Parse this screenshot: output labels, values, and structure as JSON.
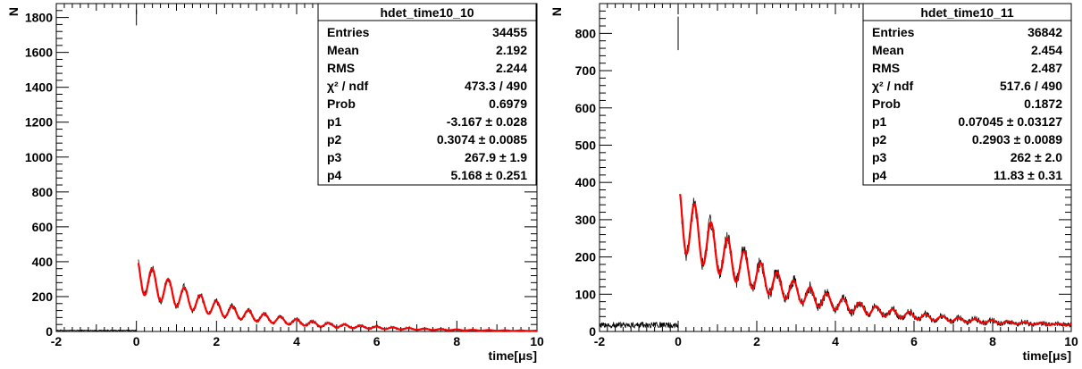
{
  "chart_data": [
    {
      "type": "line",
      "title": "hdet_time10_10",
      "xlabel": "time[μs]",
      "ylabel": "N",
      "xlim": [
        -2,
        10
      ],
      "ylim": [
        0,
        1880
      ],
      "x_ticks": [
        "-2",
        "0",
        "2",
        "4",
        "6",
        "8",
        "10"
      ],
      "y_ticks": [
        "0",
        "200",
        "400",
        "600",
        "800",
        "1000",
        "1200",
        "1400",
        "1600",
        "1800"
      ],
      "stats": {
        "title": "hdet_time10_10",
        "rows": [
          {
            "label": "Entries",
            "value": "34455"
          },
          {
            "label": "Mean",
            "value": "2.192"
          },
          {
            "label": "RMS",
            "value": "2.244"
          },
          {
            "label": "χ² / ndf",
            "value": "473.3 / 490"
          },
          {
            "label": "Prob",
            "value": "0.6979"
          },
          {
            "label": "p1",
            "value": "-3.167 ± 0.028"
          },
          {
            "label": "p2",
            "value": "0.3074 ± 0.0085"
          },
          {
            "label": "p3",
            "value": "267.9 ± 1.9"
          },
          {
            "label": "p4",
            "value": "5.168 ± 0.251"
          }
        ]
      },
      "series": [
        {
          "kind": "histogram",
          "color": "#000000",
          "baseline": 6,
          "spike": {
            "x": 0.0,
            "y": 1800
          }
        },
        {
          "kind": "fit",
          "color": "#ff0000",
          "amplitude": 330,
          "decay_tau": 2.2,
          "modulation": 0.3074,
          "period": 0.4,
          "x_range": [
            0.05,
            10
          ]
        }
      ]
    },
    {
      "type": "line",
      "title": "hdet_time10_11",
      "xlabel": "time[μs]",
      "ylabel": "N",
      "xlim": [
        -2,
        10
      ],
      "ylim": [
        0,
        880
      ],
      "x_ticks": [
        "-2",
        "0",
        "2",
        "4",
        "6",
        "8",
        "10"
      ],
      "y_ticks": [
        "0",
        "100",
        "200",
        "300",
        "400",
        "500",
        "600",
        "700",
        "800"
      ],
      "stats": {
        "title": "hdet_time10_11",
        "rows": [
          {
            "label": "Entries",
            "value": "36842"
          },
          {
            "label": "Mean",
            "value": "2.454"
          },
          {
            "label": "RMS",
            "value": "2.487"
          },
          {
            "label": "χ² / ndf",
            "value": "517.6 / 490"
          },
          {
            "label": "Prob",
            "value": "0.1872"
          },
          {
            "label": "p1",
            "value": "0.07045 ± 0.03127"
          },
          {
            "label": "p2",
            "value": "0.2903 ± 0.0089"
          },
          {
            "label": "p3",
            "value": "262 ± 2.0"
          },
          {
            "label": "p4",
            "value": "11.83 ± 0.31"
          }
        ]
      },
      "series": [
        {
          "kind": "histogram",
          "color": "#000000",
          "baseline": 17,
          "spike": {
            "x": 0.0,
            "y": 800
          }
        },
        {
          "kind": "fit",
          "color": "#ff0000",
          "amplitude": 300,
          "decay_tau": 2.6,
          "modulation": 0.2903,
          "period": 0.42,
          "tail": 12,
          "x_range": [
            0.05,
            10
          ]
        }
      ]
    }
  ]
}
